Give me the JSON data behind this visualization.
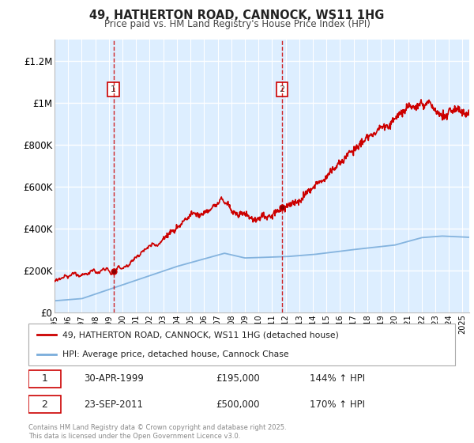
{
  "title": "49, HATHERTON ROAD, CANNOCK, WS11 1HG",
  "subtitle": "Price paid vs. HM Land Registry's House Price Index (HPI)",
  "ylabel_ticks": [
    "£0",
    "£200K",
    "£400K",
    "£600K",
    "£800K",
    "£1M",
    "£1.2M"
  ],
  "ylim": [
    0,
    1300000
  ],
  "yticks": [
    0,
    200000,
    400000,
    600000,
    800000,
    1000000,
    1200000
  ],
  "sale1_date": "30-APR-1999",
  "sale1_price": 195000,
  "sale1_hpi": "144% ↑ HPI",
  "sale2_date": "23-SEP-2011",
  "sale2_price": 500000,
  "sale2_hpi": "170% ↑ HPI",
  "legend_line1": "49, HATHERTON ROAD, CANNOCK, WS11 1HG (detached house)",
  "legend_line2": "HPI: Average price, detached house, Cannock Chase",
  "footer": "Contains HM Land Registry data © Crown copyright and database right 2025.\nThis data is licensed under the Open Government Licence v3.0.",
  "red_color": "#cc0000",
  "blue_color": "#7aaddb",
  "vline_color": "#cc0000",
  "bg_color": "#ddeeff",
  "grid_color": "#ffffff",
  "sale1_x": 1999.33,
  "sale2_x": 2011.73,
  "xmin": 1995,
  "xmax": 2025.5
}
